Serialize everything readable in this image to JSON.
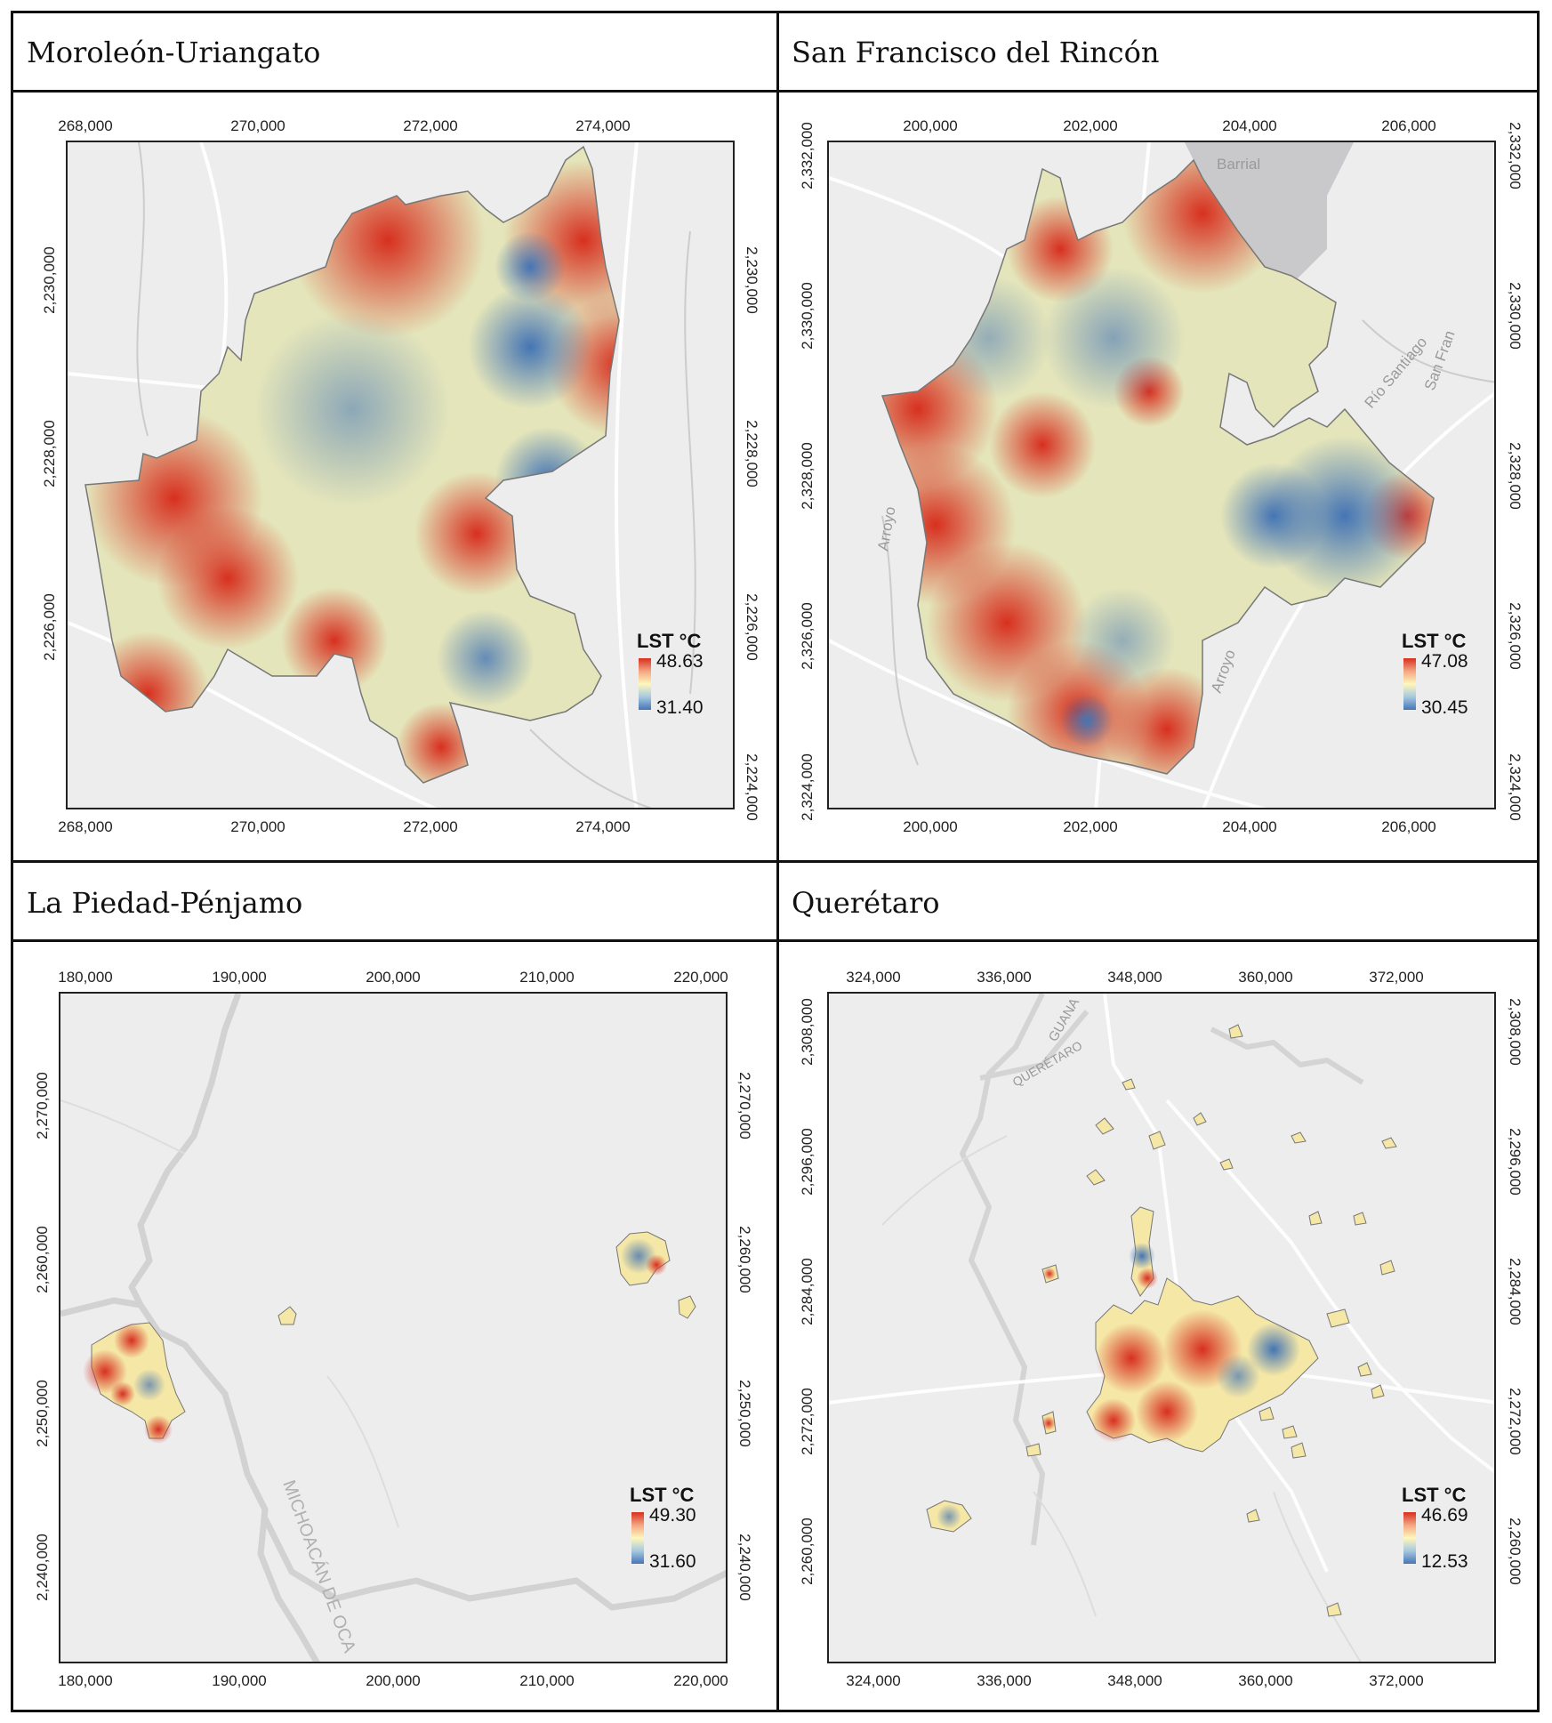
{
  "panels": [
    {
      "title": "Moroleón-Uriangato",
      "x_ticks": [
        "268,000",
        "270,000",
        "272,000",
        "274,000"
      ],
      "y_ticks": [
        "2,230,000",
        "2,228,000",
        "2,226,000"
      ],
      "y_ticks_right": [
        "2,230,000",
        "2,228,000",
        "2,226,000",
        "2,224,000"
      ],
      "legend_title": "LST °C",
      "legend_max": "48.63",
      "legend_min": "31.40"
    },
    {
      "title": "San Francisco del Rincón",
      "x_ticks": [
        "200,000",
        "202,000",
        "204,000",
        "206,000"
      ],
      "y_ticks": [
        "2,332,000",
        "2,330,000",
        "2,328,000",
        "2,326,000",
        "2,324,000"
      ],
      "legend_title": "LST °C",
      "legend_max": "47.08",
      "legend_min": "30.45",
      "place_labels": [
        "Barrial",
        "Arroyo",
        "Río Santiago",
        "San Fran",
        "Arroyo"
      ]
    },
    {
      "title": "La Piedad-Pénjamo",
      "x_ticks": [
        "180,000",
        "190,000",
        "200,000",
        "210,000",
        "220,000"
      ],
      "y_ticks": [
        "2,270,000",
        "2,260,000",
        "2,250,000",
        "2,240,000"
      ],
      "legend_title": "LST °C",
      "legend_max": "49.30",
      "legend_min": "31.60",
      "place_labels": [
        "MICHOACÁN DE OCA"
      ]
    },
    {
      "title": "Querétaro",
      "x_ticks": [
        "324,000",
        "336,000",
        "348,000",
        "360,000",
        "372,000"
      ],
      "y_ticks": [
        "2,308,000",
        "2,296,000",
        "2,284,000",
        "2,272,000",
        "2,260,000"
      ],
      "legend_title": "LST °C",
      "legend_max": "46.69",
      "legend_min": "12.53",
      "place_labels": [
        "GUANA",
        "QUERÉTARO"
      ]
    }
  ],
  "colors": {
    "hot": "#d7301f",
    "warm": "#f4a582",
    "mid": "#fff7bc",
    "cool": "#a6c8e0",
    "cold": "#4575b4",
    "basemap": "#ededed"
  }
}
